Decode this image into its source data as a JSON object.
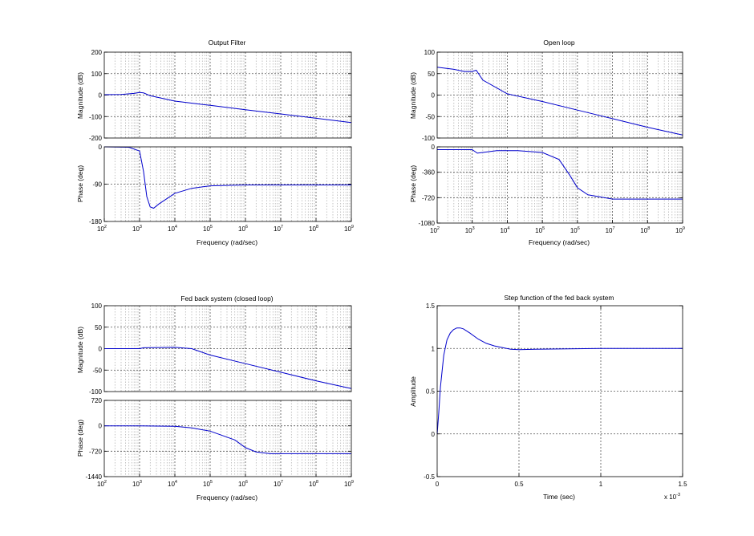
{
  "chart_data": [
    {
      "type": "line",
      "title": "Output Filter",
      "xlabel": "Frequency  (rad/sec)",
      "xscale": "log",
      "xlim": [
        100,
        1000000000
      ],
      "x_ticks": [
        {
          "b": "10",
          "e": "2"
        },
        {
          "b": "10",
          "e": "3"
        },
        {
          "b": "10",
          "e": "4"
        },
        {
          "b": "10",
          "e": "5"
        },
        {
          "b": "10",
          "e": "6"
        },
        {
          "b": "10",
          "e": "7"
        },
        {
          "b": "10",
          "e": "8"
        },
        {
          "b": "10",
          "e": "9"
        }
      ],
      "grid": true,
      "magnitude": {
        "ylabel": "Magnitude (dB)",
        "ylim": [
          -200,
          200
        ],
        "yticks": [
          "-200",
          "-100",
          "0",
          "100",
          "200"
        ],
        "x": [
          100,
          300,
          700,
          1000,
          1300,
          2000,
          10000,
          100000,
          1000000,
          10000000,
          100000000,
          1000000000
        ],
        "y": [
          2,
          3,
          8,
          12,
          10,
          -3,
          -28,
          -48,
          -68,
          -88,
          -108,
          -128
        ]
      },
      "phase": {
        "ylabel": "Phase (deg)",
        "ylim": [
          -180,
          0
        ],
        "yticks": [
          "-180",
          "-90",
          "0"
        ],
        "x": [
          100,
          500,
          1000,
          1300,
          1600,
          2000,
          2500,
          3500,
          10000,
          30000,
          100000,
          1000000,
          1000000000
        ],
        "y": [
          0,
          -1,
          -10,
          -60,
          -120,
          -145,
          -148,
          -138,
          -112,
          -100,
          -94,
          -92,
          -92
        ]
      },
      "series_color": "#0000cc"
    },
    {
      "type": "line",
      "title": "Open loop",
      "xlabel": "Frequency  (rad/sec)",
      "xscale": "log",
      "xlim": [
        100,
        1000000000
      ],
      "x_ticks": [
        {
          "b": "10",
          "e": "2"
        },
        {
          "b": "10",
          "e": "3"
        },
        {
          "b": "10",
          "e": "4"
        },
        {
          "b": "10",
          "e": "5"
        },
        {
          "b": "10",
          "e": "6"
        },
        {
          "b": "10",
          "e": "7"
        },
        {
          "b": "10",
          "e": "8"
        },
        {
          "b": "10",
          "e": "9"
        }
      ],
      "grid": true,
      "magnitude": {
        "ylabel": "Magnitude (dB)",
        "ylim": [
          -100,
          100
        ],
        "yticks": [
          "-100",
          "-50",
          "0",
          "50",
          "100"
        ],
        "x": [
          100,
          300,
          600,
          1000,
          1300,
          2000,
          10000,
          100000,
          1000000,
          10000000,
          100000000,
          1000000000
        ],
        "y": [
          65,
          60,
          55,
          55,
          58,
          35,
          3,
          -15,
          -35,
          -55,
          -75,
          -93
        ]
      },
      "phase": {
        "ylabel": "Phase (deg)",
        "ylim": [
          -1080,
          0
        ],
        "yticks": [
          "-1080",
          "-720",
          "-360",
          "0"
        ],
        "x": [
          100,
          1000,
          1400,
          2000,
          5000,
          20000,
          100000,
          300000,
          600000,
          1000000,
          2000000,
          10000000,
          1000000000
        ],
        "y": [
          -40,
          -40,
          -90,
          -80,
          -55,
          -55,
          -80,
          -180,
          -400,
          -580,
          -680,
          -740,
          -740
        ]
      },
      "series_color": "#0000cc"
    },
    {
      "type": "line",
      "title": "Fed back system (closed loop)",
      "xlabel": "Frequency  (rad/sec)",
      "xscale": "log",
      "xlim": [
        100,
        1000000000
      ],
      "x_ticks": [
        {
          "b": "10",
          "e": "2"
        },
        {
          "b": "10",
          "e": "3"
        },
        {
          "b": "10",
          "e": "4"
        },
        {
          "b": "10",
          "e": "5"
        },
        {
          "b": "10",
          "e": "6"
        },
        {
          "b": "10",
          "e": "7"
        },
        {
          "b": "10",
          "e": "8"
        },
        {
          "b": "10",
          "e": "9"
        }
      ],
      "grid": true,
      "magnitude": {
        "ylabel": "Magnitude (dB)",
        "ylim": [
          -100,
          100
        ],
        "yticks": [
          "-100",
          "-50",
          "0",
          "50",
          "100"
        ],
        "x": [
          100,
          1000,
          1300,
          10000,
          30000,
          100000,
          1000000,
          10000000,
          100000000,
          1000000000
        ],
        "y": [
          0,
          0,
          2,
          3,
          0,
          -15,
          -35,
          -55,
          -75,
          -93
        ]
      },
      "phase": {
        "ylabel": "Phase (deg)",
        "ylim": [
          -1440,
          720
        ],
        "yticks": [
          "-1440",
          "-720",
          "0",
          "720"
        ],
        "x": [
          100,
          1000,
          10000,
          30000,
          100000,
          500000,
          1000000,
          2000000,
          5000000,
          1000000000
        ],
        "y": [
          0,
          0,
          -15,
          -60,
          -150,
          -400,
          -620,
          -740,
          -790,
          -790
        ]
      },
      "series_color": "#0000cc"
    },
    {
      "type": "line",
      "title": "Step function of the fed back system",
      "xlabel": "Time (sec)",
      "ylabel": "Amplitude",
      "xlim": [
        0,
        1.5
      ],
      "ylim": [
        -0.5,
        1.5
      ],
      "xticks": [
        "0",
        "0.5",
        "1",
        "1.5"
      ],
      "yticks": [
        "-0.5",
        "0",
        "0.5",
        "1",
        "1.5"
      ],
      "x_multiplier": {
        "b": "x 10",
        "e": "-3"
      },
      "grid": true,
      "x": [
        0,
        0.01,
        0.02,
        0.04,
        0.06,
        0.08,
        0.1,
        0.12,
        0.14,
        0.16,
        0.2,
        0.25,
        0.3,
        0.35,
        0.4,
        0.45,
        0.5,
        0.6,
        0.8,
        1.0,
        1.2,
        1.5
      ],
      "y": [
        0,
        0.25,
        0.55,
        0.92,
        1.1,
        1.18,
        1.22,
        1.24,
        1.24,
        1.23,
        1.18,
        1.11,
        1.06,
        1.03,
        1.01,
        0.99,
        0.985,
        0.99,
        0.995,
        1.0,
        1.0,
        1.0
      ],
      "series_color": "#0000cc"
    }
  ]
}
